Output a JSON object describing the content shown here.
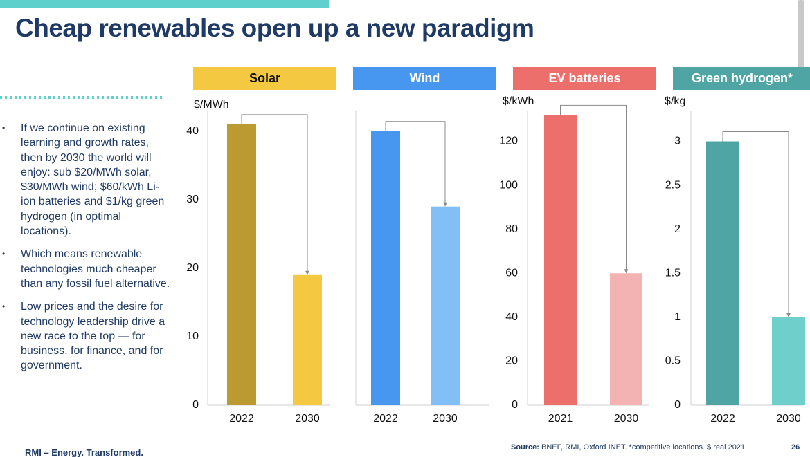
{
  "title": "Cheap renewables open up a new paradigm",
  "bullets": [
    "If we continue on existing learning and growth rates, then by 2030 the world will enjoy: sub $20/MWh solar, $30/MWh wind; $60/kWh Li-ion batteries and $1/kg green hydrogen (in optimal locations).",
    "Which means renewable technologies much cheaper than any fossil fuel alternative.",
    "Low prices and the desire for technology leadership drive a new race to the top — for business, for finance, and for government."
  ],
  "footer": {
    "brand": "RMI – Energy. Transformed.",
    "source_label": "Source:",
    "source_text": "BNEF, RMI, Oxford INET. *competitive locations. $ real 2021.",
    "page": "26"
  },
  "chart_data": [
    {
      "type": "bar",
      "title": "Solar",
      "header_color": "#f5c842",
      "title_color": "#111111",
      "y_label": "$/MWh",
      "categories": [
        "2022",
        "2030"
      ],
      "values": [
        41,
        19
      ],
      "colors": [
        "#bb9a32",
        "#f5c842"
      ],
      "ylim": [
        0,
        43
      ],
      "yticks": [
        0,
        10,
        20,
        30,
        40
      ]
    },
    {
      "type": "bar",
      "title": "Wind",
      "header_color": "#4796f0",
      "title_color": "#ffffff",
      "categories": [
        "2022",
        "2030"
      ],
      "values": [
        40,
        29
      ],
      "colors": [
        "#4796f0",
        "#82bff7"
      ],
      "ylim": [
        0,
        43
      ]
    },
    {
      "type": "bar",
      "title": "EV batteries",
      "header_color": "#ec6f6c",
      "title_color": "#ffffff",
      "y_label": "$/kWh",
      "categories": [
        "2021",
        "2030"
      ],
      "values": [
        132,
        60
      ],
      "colors": [
        "#ec6f6c",
        "#f2b3b2"
      ],
      "ylim": [
        0,
        134
      ],
      "yticks": [
        0,
        20,
        40,
        60,
        80,
        100,
        120
      ]
    },
    {
      "type": "bar",
      "title": "Green hydrogen*",
      "header_color": "#4ea5a3",
      "title_color": "#ffffff",
      "y_label": "$/kg",
      "categories": [
        "2022",
        "2030"
      ],
      "values": [
        3,
        1
      ],
      "colors": [
        "#4ea5a3",
        "#6fcfcb"
      ],
      "ylim": [
        0,
        3.35
      ],
      "yticks": [
        0,
        0.5,
        1,
        1.5,
        2,
        2.5,
        3
      ]
    }
  ]
}
